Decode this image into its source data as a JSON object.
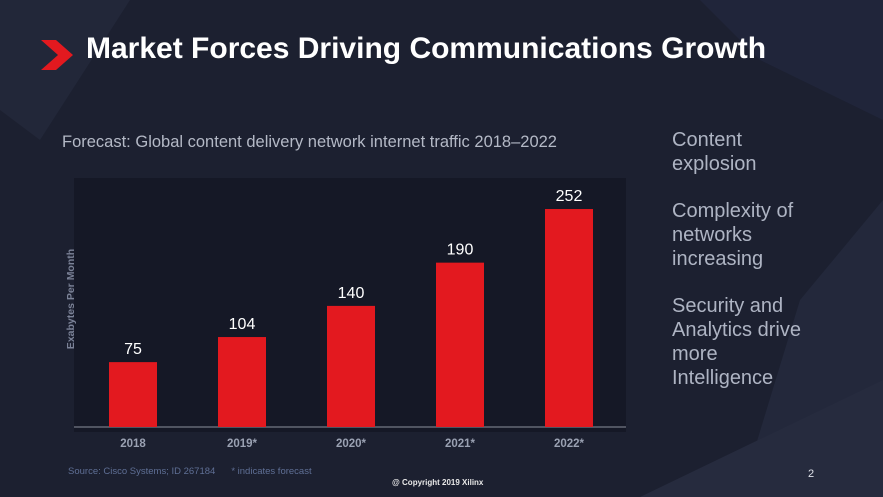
{
  "slide": {
    "title": "Market Forces Driving Communications Growth",
    "accent_color": "#e3191f",
    "background_color": "#1c2030",
    "copyright": "@ Copyright 2019 Xilinx",
    "page_number": "2"
  },
  "footnote": {
    "source": "Source: Cisco Systems; ID 267184",
    "note": "* indicates forecast"
  },
  "bullets": [
    "Content\nexplosion",
    "Complexity of\nnetworks\nincreasing",
    "Security and\nAnalytics drive\nmore\nIntelligence"
  ],
  "chart_data": {
    "type": "bar",
    "title": "Forecast: Global content delivery network internet traffic 2018–2022",
    "ylabel": "Exabytes Per Month",
    "xlabel": "",
    "categories": [
      "2018",
      "2019*",
      "2020*",
      "2021*",
      "2022*"
    ],
    "values": [
      75,
      104,
      140,
      190,
      252
    ],
    "ylim": [
      0,
      280
    ],
    "grid": false,
    "data_labels": true,
    "bar_color": "#e3191f"
  }
}
